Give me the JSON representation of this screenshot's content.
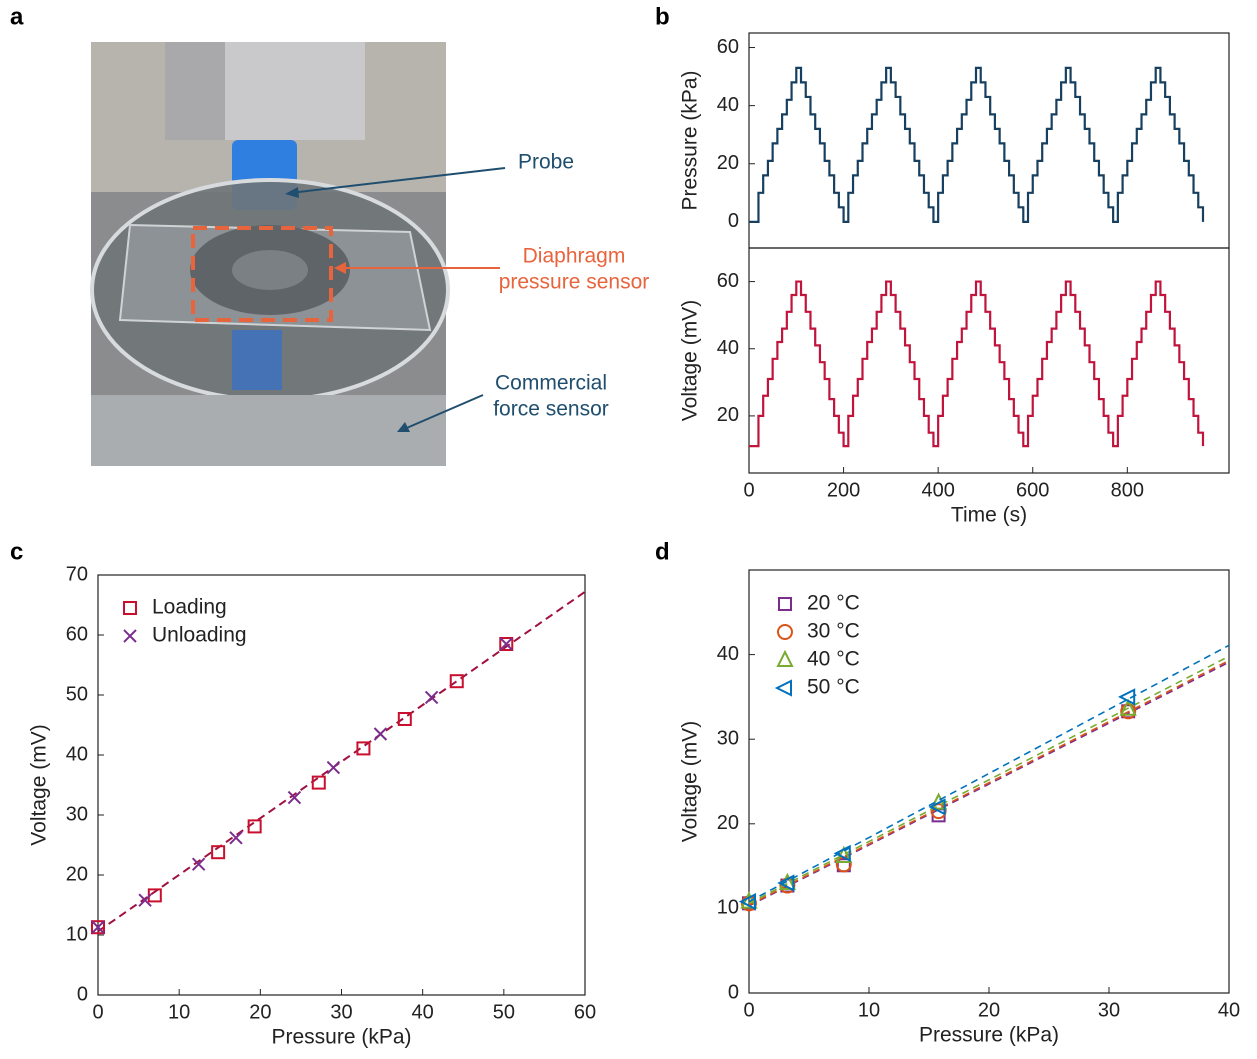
{
  "panel_labels": [
    "a",
    "b",
    "c",
    "d"
  ],
  "photo": {
    "annotations": [
      {
        "lines": [
          "Probe"
        ]
      },
      {
        "lines": [
          "Diaphragm",
          "pressure sensor"
        ]
      },
      {
        "lines": [
          "Commercial",
          "force sensor"
        ]
      }
    ]
  },
  "chart_data": [
    {
      "type": "line",
      "step": true,
      "ylabel": "Pressure (kPa)",
      "xlim": [
        0,
        1015
      ],
      "ylim": [
        -9,
        65
      ],
      "yticks": [
        0,
        20,
        40,
        60
      ],
      "series": [
        {
          "color": "#173f5f",
          "x": [
            0,
            10,
            20,
            30,
            40,
            50,
            60,
            70,
            80,
            90,
            100,
            110,
            120,
            130,
            140,
            150,
            160,
            170,
            180,
            190,
            200,
            210,
            220,
            230,
            240,
            250,
            260,
            270,
            280,
            290,
            300,
            310,
            320,
            330,
            340,
            350,
            360,
            370,
            380,
            390,
            400,
            410,
            420,
            430,
            440,
            450,
            460,
            470,
            480,
            490,
            500,
            510,
            520,
            530,
            540,
            550,
            560,
            570,
            580,
            590,
            600,
            610,
            620,
            630,
            640,
            650,
            660,
            670,
            680,
            690,
            700,
            710,
            720,
            730,
            740,
            750,
            760,
            770,
            780,
            790,
            800,
            810,
            820,
            830,
            840,
            850,
            860,
            870,
            880,
            890,
            900,
            910,
            920,
            930,
            940,
            950,
            960
          ],
          "values": [
            0,
            0,
            10,
            16,
            21,
            27,
            32,
            37,
            42,
            48,
            53,
            48,
            43,
            37,
            32,
            27,
            21,
            16,
            10,
            5,
            0,
            10,
            16,
            21,
            27,
            32,
            37,
            42,
            48,
            53,
            48,
            43,
            37,
            32,
            27,
            21,
            16,
            10,
            5,
            0,
            10,
            16,
            21,
            27,
            32,
            37,
            42,
            48,
            53,
            48,
            43,
            37,
            32,
            27,
            21,
            16,
            10,
            5,
            0,
            10,
            16,
            21,
            27,
            32,
            37,
            42,
            48,
            53,
            48,
            43,
            37,
            32,
            27,
            21,
            16,
            10,
            5,
            0,
            10,
            16,
            21,
            27,
            32,
            37,
            42,
            48,
            53,
            48,
            43,
            37,
            32,
            27,
            21,
            16,
            10,
            5,
            0
          ]
        }
      ]
    },
    {
      "type": "line",
      "step": true,
      "xlabel": "Time (s)",
      "ylabel": "Voltage (mV)",
      "xlim": [
        0,
        1015
      ],
      "xticks": [
        0,
        200,
        400,
        600,
        800
      ],
      "ylim": [
        3,
        70
      ],
      "yticks": [
        20,
        40,
        60
      ],
      "series": [
        {
          "color": "#c0143c",
          "x": [
            0,
            10,
            20,
            30,
            40,
            50,
            60,
            70,
            80,
            90,
            100,
            110,
            120,
            130,
            140,
            150,
            160,
            170,
            180,
            190,
            200,
            210,
            220,
            230,
            240,
            250,
            260,
            270,
            280,
            290,
            300,
            310,
            320,
            330,
            340,
            350,
            360,
            370,
            380,
            390,
            400,
            410,
            420,
            430,
            440,
            450,
            460,
            470,
            480,
            490,
            500,
            510,
            520,
            530,
            540,
            550,
            560,
            570,
            580,
            590,
            600,
            610,
            620,
            630,
            640,
            650,
            660,
            670,
            680,
            690,
            700,
            710,
            720,
            730,
            740,
            750,
            760,
            770,
            780,
            790,
            800,
            810,
            820,
            830,
            840,
            850,
            860,
            870,
            880,
            890,
            900,
            910,
            920,
            930,
            940,
            950,
            960
          ],
          "values": [
            11,
            11,
            20,
            26,
            31,
            37,
            42,
            46,
            51,
            56,
            60,
            56,
            51,
            46,
            41,
            36,
            31,
            25,
            20,
            15,
            11,
            20,
            26,
            31,
            37,
            42,
            46,
            51,
            56,
            60,
            56,
            51,
            46,
            41,
            36,
            31,
            25,
            20,
            15,
            11,
            20,
            26,
            31,
            37,
            42,
            46,
            51,
            56,
            60,
            56,
            51,
            46,
            41,
            36,
            31,
            25,
            20,
            15,
            11,
            20,
            26,
            31,
            37,
            42,
            46,
            51,
            56,
            60,
            56,
            51,
            46,
            41,
            36,
            31,
            25,
            20,
            15,
            11,
            20,
            26,
            31,
            37,
            42,
            46,
            51,
            56,
            60,
            56,
            51,
            46,
            41,
            36,
            31,
            25,
            20,
            15,
            11
          ]
        }
      ]
    },
    {
      "type": "scatter",
      "xlabel": "Pressure (kPa)",
      "ylabel": "Voltage (mV)",
      "xlim": [
        0,
        60
      ],
      "xticks": [
        0,
        10,
        20,
        30,
        40,
        50,
        60
      ],
      "ylim": [
        0,
        70
      ],
      "yticks": [
        0,
        10,
        20,
        30,
        40,
        50,
        60,
        70
      ],
      "legend": "upper-left",
      "fit": {
        "color": "#a01040",
        "x": [
          0,
          60
        ],
        "y": [
          10.6,
          67.2
        ]
      },
      "series": [
        {
          "name": "Loading",
          "marker": "square",
          "color": "#c8102e",
          "x": [
            0,
            7,
            14.8,
            19.3,
            27.2,
            32.7,
            37.8,
            44.2,
            50.3
          ],
          "values": [
            11.3,
            16.6,
            23.8,
            28.1,
            35.4,
            41.1,
            46,
            52.3,
            58.5
          ]
        },
        {
          "name": "Unloading",
          "marker": "x",
          "color": "#7b2d8e",
          "x": [
            0,
            5.8,
            12.4,
            17,
            24.2,
            29,
            34.8,
            41.1,
            50.3
          ],
          "values": [
            11.3,
            15.8,
            21.8,
            26.2,
            32.9,
            37.9,
            43.5,
            49.6,
            58.5
          ]
        }
      ]
    },
    {
      "type": "scatter",
      "xlabel": "Pressure (kPa)",
      "ylabel": "Voltage (mV)",
      "xlim": [
        0,
        40
      ],
      "xticks": [
        0,
        10,
        20,
        30,
        40
      ],
      "ylim": [
        0,
        50
      ],
      "yticks": [
        0,
        10,
        20,
        30,
        40
      ],
      "legend": "upper-left",
      "series": [
        {
          "name": "20 °C",
          "marker": "square",
          "color": "#7b2d8e",
          "x": [
            0,
            3.2,
            7.9,
            15.8,
            31.6
          ],
          "values": [
            10.6,
            12.7,
            15.1,
            21,
            33.3
          ],
          "fit": [
            10.3,
            39.1
          ]
        },
        {
          "name": "30 °C",
          "marker": "circle",
          "color": "#d95319",
          "x": [
            0,
            3.2,
            7.9,
            15.8,
            31.6
          ],
          "values": [
            10.6,
            12.7,
            15.2,
            21.5,
            33.3
          ],
          "fit": [
            10.4,
            39.3
          ]
        },
        {
          "name": "40 °C",
          "marker": "triangle",
          "color": "#77ac30",
          "x": [
            0,
            3.2,
            7.9,
            15.8,
            31.6
          ],
          "values": [
            10.8,
            13,
            16.2,
            22.5,
            33.6
          ],
          "fit": [
            10.6,
            39.8
          ]
        },
        {
          "name": "50 °C",
          "marker": "ltriangle",
          "color": "#0072bd",
          "x": [
            0,
            3.2,
            7.9,
            15.8,
            31.6
          ],
          "values": [
            10.8,
            13,
            16.5,
            22,
            35
          ],
          "fit": [
            10.8,
            41.1
          ]
        }
      ]
    }
  ]
}
